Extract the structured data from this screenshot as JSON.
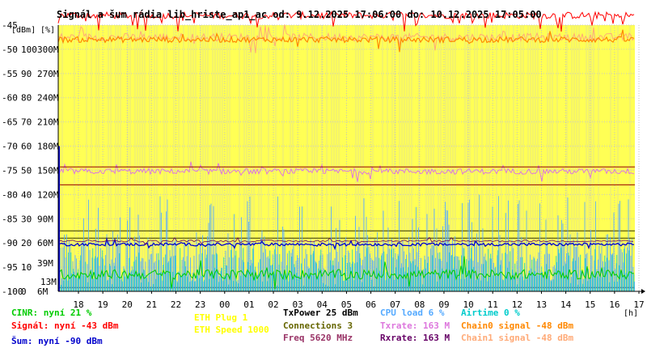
{
  "chart_data": {
    "type": "line",
    "title": "Signál a šum rádia lib_hriste_ap1_ac od: 9.12.2025 17:06:00 do: 10.12.2025 17:05:00",
    "y_unit_labels": [
      "[dBm]",
      "[%]"
    ],
    "x_unit_label": "[h]",
    "x_ticks": [
      "18",
      "19",
      "20",
      "21",
      "22",
      "23",
      "00",
      "01",
      "02",
      "03",
      "04",
      "05",
      "06",
      "07",
      "08",
      "09",
      "10",
      "11",
      "12",
      "13",
      "14",
      "15",
      "16",
      "17"
    ],
    "y_ticks_dbm": [
      "-45",
      "-50",
      "-55",
      "-60",
      "-65",
      "-70",
      "-75",
      "-80",
      "-85",
      "-90",
      "-95",
      "-100"
    ],
    "y_ticks_pct": [
      "",
      "100",
      "90",
      "80",
      "70",
      "60",
      "50",
      "40",
      "30",
      "20",
      "10",
      "0"
    ],
    "y_ticks_rate": [
      "",
      "300M",
      "270M",
      "240M",
      "210M",
      "180M",
      "150M",
      "120M",
      "90M",
      "60M",
      "39M",
      "6M"
    ],
    "y_ticks_rate_extra": {
      "label": "13M",
      "value_dbm": -98.0
    },
    "ylim": [
      -100,
      -45
    ],
    "grid": true,
    "colors": {
      "background": "#ffff55",
      "signal": "#ff0000",
      "noise": "#0000cc",
      "cinr": "#00cc00",
      "chain0": "#ff8800",
      "chain1": "#ffaa77",
      "txrate": "#dd77dd",
      "rxrate": "#660066",
      "cpu": "#55aaff",
      "airtime": "#00cccc",
      "eth_plug": "#ffff00",
      "eth_speed": "#ffff00",
      "connections": "#666600",
      "freq": "#993366",
      "txpower": "#000000",
      "ref_line_dark": "#333300",
      "ref_line_red": "#990000"
    },
    "series": [
      {
        "name": "Signál",
        "approx_level_dbm": -43
      },
      {
        "name": "Šum",
        "approx_level_dbm": -90
      },
      {
        "name": "CINR",
        "approx_level_pct": 21
      },
      {
        "name": "Chain0 signal",
        "approx_level_dbm": -48
      },
      {
        "name": "Chain1 signal",
        "approx_level_dbm": -48
      },
      {
        "name": "Txrate",
        "approx_level_mbps": 163
      },
      {
        "name": "Rxrate",
        "approx_level_mbps": 163
      },
      {
        "name": "CPU load",
        "approx_level_pct": 6
      },
      {
        "name": "Airtime",
        "approx_level_pct": 0
      }
    ]
  },
  "legend": [
    {
      "key": "cinr",
      "text": "CINR: nyní 21 %"
    },
    {
      "key": "signal",
      "text": "Signál: nyní -43 dBm"
    },
    {
      "key": "noise",
      "text": "Šum: nyní -90 dBm"
    },
    {
      "key": "eth_plug",
      "text": "ETH Plug 1"
    },
    {
      "key": "eth_speed",
      "text": "ETH Speed 1000"
    },
    {
      "key": "txpower",
      "text": "TxPower 25 dBm"
    },
    {
      "key": "connections",
      "text": "Connections 3"
    },
    {
      "key": "freq",
      "text": "Freq 5620 MHz"
    },
    {
      "key": "cpu",
      "text": "CPU load 6 %"
    },
    {
      "key": "txrate",
      "text": "Txrate: 163 M"
    },
    {
      "key": "rxrate",
      "text": "Rxrate: 163 M"
    },
    {
      "key": "airtime",
      "text": "Airtime 0 %"
    },
    {
      "key": "chain0",
      "text": "Chain0 signal -48 dBm"
    },
    {
      "key": "chain1",
      "text": "Chain1 signal -48 dBm"
    }
  ]
}
